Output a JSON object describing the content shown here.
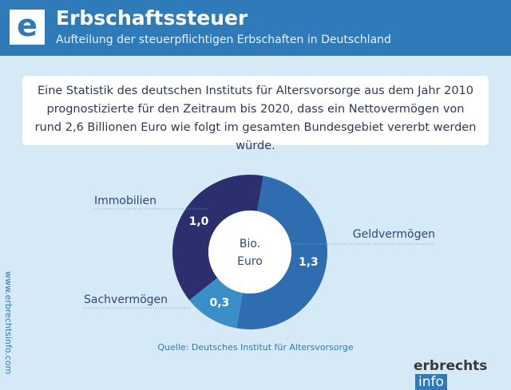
{
  "header": {
    "icon": "e",
    "title": "Erbschaftssteuer",
    "subtitle": "Aufteilung der steuerpflichtigen Erbschaften in Deutschland"
  },
  "intro": "Eine Statistik des deutschen Instituts für Altersvorsorge aus dem Jahr 2010 prognostizierte für den Zeitraum bis 2020, dass ein Nettovermögen von rund 2,6 Billionen Euro wie folgt im gesamten Bundesgebiet vererbt werden würde.",
  "chart_data": {
    "type": "pie",
    "donut": true,
    "center_label": [
      "Bio.",
      "Euro"
    ],
    "categories": [
      "Geldvermögen",
      "Sachvermögen",
      "Immobilien"
    ],
    "values": [
      1.3,
      0.3,
      1.0
    ],
    "value_labels": [
      "1,3",
      "0,3",
      "1,0"
    ],
    "colors": [
      "#2e6db0",
      "#3a8fc8",
      "#2c2f6e"
    ],
    "source": "Quelle: Deutsches Institut für Altersvorsorge"
  },
  "footer": {
    "website": "www.erbrechtsinfo.com",
    "logo_main": "erbrechts",
    "logo_tag": "info"
  }
}
